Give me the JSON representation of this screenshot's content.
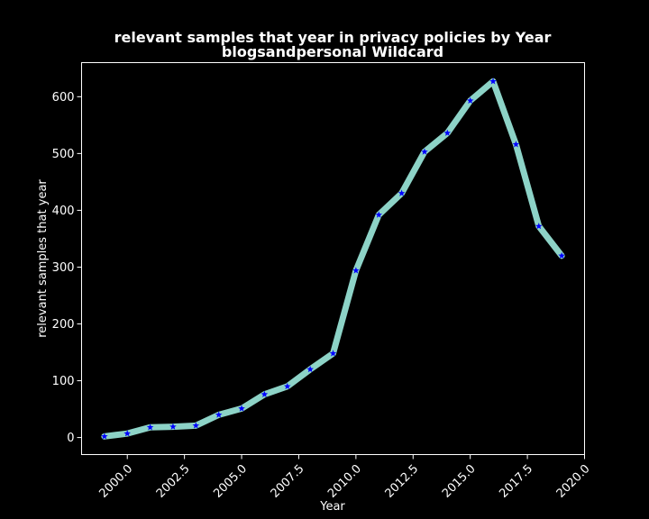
{
  "chart_data": {
    "type": "line",
    "title": "relevant samples that year in privacy policies by Year",
    "subtitle": "blogsandpersonal Wildcard",
    "xlabel": "Year",
    "ylabel": "relevant samples that year",
    "xlim": [
      1998.0,
      2020.0
    ],
    "ylim": [
      -30,
      660
    ],
    "xticks": [
      2000.0,
      2002.5,
      2005.0,
      2007.5,
      2010.0,
      2012.5,
      2015.0,
      2017.5,
      2020.0
    ],
    "xtick_labels": [
      "2000.0",
      "2002.5",
      "2005.0",
      "2007.5",
      "2010.0",
      "2012.5",
      "2015.0",
      "2017.5",
      "2020.0"
    ],
    "yticks": [
      0,
      100,
      200,
      300,
      400,
      500,
      600
    ],
    "ytick_labels": [
      "0",
      "100",
      "200",
      "300",
      "400",
      "500",
      "600"
    ],
    "grid": false,
    "line_color": "#8dd3c7",
    "marker_color": "#0000ff",
    "marker": "star",
    "series": [
      {
        "x": [
          1999,
          2000,
          2001,
          2002,
          2003,
          2004,
          2005,
          2006,
          2007,
          2008,
          2009,
          2010,
          2011,
          2012,
          2013,
          2014,
          2015,
          2016,
          2017,
          2018,
          2019
        ],
        "y": [
          2,
          7,
          18,
          19,
          21,
          40,
          51,
          76,
          90,
          120,
          148,
          294,
          392,
          430,
          503,
          536,
          593,
          627,
          516,
          372,
          320
        ]
      }
    ]
  }
}
